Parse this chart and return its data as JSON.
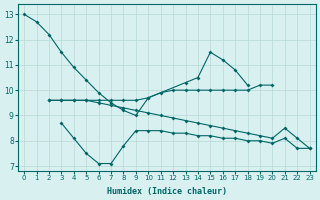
{
  "xlabel": "Humidex (Indice chaleur)",
  "bg_color": "#d9f0f0",
  "grid_color": "#b8d8d8",
  "line_color": "#006666",
  "xlim": [
    -0.5,
    23.5
  ],
  "ylim": [
    6.8,
    13.4
  ],
  "xticks": [
    0,
    1,
    2,
    3,
    4,
    5,
    6,
    7,
    8,
    9,
    10,
    11,
    12,
    13,
    14,
    15,
    16,
    17,
    18,
    19,
    20,
    21,
    22,
    23
  ],
  "yticks": [
    7,
    8,
    9,
    10,
    11,
    12,
    13
  ],
  "line1": {
    "x": [
      0,
      1,
      2,
      3,
      4,
      5,
      6,
      7,
      8,
      9,
      10,
      13,
      14,
      15,
      16,
      17,
      18
    ],
    "y": [
      13.0,
      12.7,
      12.2,
      11.5,
      10.9,
      10.4,
      9.9,
      9.5,
      9.2,
      9.0,
      9.7,
      10.3,
      10.5,
      11.5,
      11.2,
      10.8,
      10.2
    ]
  },
  "line2": {
    "x": [
      2,
      3,
      4,
      5,
      6,
      7,
      8,
      9,
      10,
      11,
      12,
      13,
      14,
      15,
      16,
      17,
      18,
      19,
      20
    ],
    "y": [
      9.6,
      9.6,
      9.6,
      9.6,
      9.6,
      9.6,
      9.6,
      9.6,
      9.7,
      9.9,
      10.0,
      10.0,
      10.0,
      10.0,
      10.0,
      10.0,
      10.0,
      10.2,
      10.2
    ]
  },
  "line3": {
    "x": [
      2,
      3,
      4,
      5,
      6,
      7,
      8,
      9,
      10,
      11,
      12,
      13,
      14,
      15,
      16,
      17,
      18,
      19,
      20,
      21,
      22,
      23
    ],
    "y": [
      9.6,
      9.6,
      9.6,
      9.6,
      9.5,
      9.4,
      9.3,
      9.2,
      9.1,
      9.0,
      8.9,
      8.8,
      8.7,
      8.6,
      8.5,
      8.4,
      8.3,
      8.2,
      8.1,
      8.5,
      8.1,
      7.7
    ]
  },
  "line4": {
    "x": [
      3,
      4,
      5,
      6,
      7,
      8,
      9,
      10,
      11,
      12,
      13,
      14,
      15,
      16,
      17,
      18,
      19,
      20,
      21,
      22,
      23
    ],
    "y": [
      8.7,
      8.1,
      7.5,
      7.1,
      7.1,
      7.8,
      8.4,
      8.4,
      8.4,
      8.3,
      8.3,
      8.2,
      8.2,
      8.1,
      8.1,
      8.0,
      8.0,
      7.9,
      8.1,
      7.7,
      7.7
    ]
  }
}
